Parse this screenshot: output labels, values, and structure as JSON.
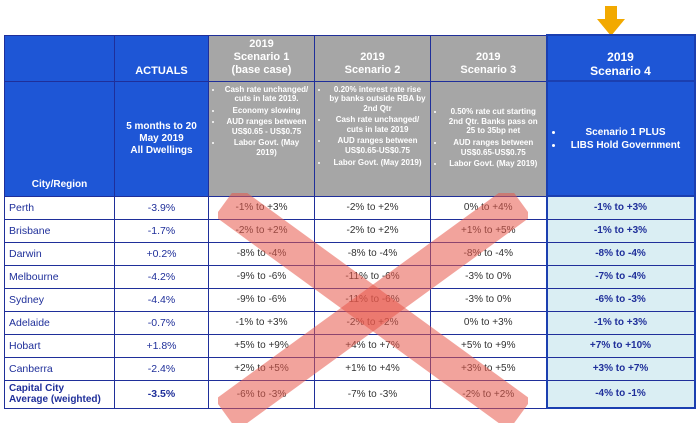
{
  "header": {
    "actuals": "ACTUALS",
    "scenario1": {
      "year": "2019",
      "name": "Scenario 1",
      "sub": "(base case)"
    },
    "scenario2": {
      "year": "2019",
      "name": "Scenario 2"
    },
    "scenario3": {
      "year": "2019",
      "name": "Scenario 3"
    },
    "scenario4": {
      "year": "2019",
      "name": "Scenario 4"
    }
  },
  "subheader": {
    "city_region": "City/Region",
    "actuals_line1": "5 months to 20",
    "actuals_line2": "May 2019",
    "actuals_line3": "All Dwellings",
    "scenario1_bullets": [
      "Cash rate unchanged/ cuts in late 2019.",
      "Economy slowing",
      "AUD ranges between US$0.65 - US$0.75",
      "Labor Govt. (May 2019)"
    ],
    "scenario2_bullets": [
      "0.20% interest rate rise by banks outside RBA by 2nd Qtr",
      "Cash rate unchanged/ cuts in late 2019",
      "AUD ranges between US$0.65-US$0.75",
      "Labor Govt. (May 2019)"
    ],
    "scenario3_bullets": [
      "0.50% rate cut starting 2nd Qtr. Banks pass on 25 to 35bp net",
      "AUD ranges between US$0.65-US$0.75",
      "Labor Govt. (May 2019)"
    ],
    "scenario4_bullets": [
      "Scenario 1 PLUS",
      "LIBS Hold Government"
    ]
  },
  "rows": [
    {
      "city": "Perth",
      "actual": "-3.9%",
      "s1": "-1% to +3%",
      "s2": "-2% to +2%",
      "s3": "0% to +4%",
      "s4": "-1% to +3%"
    },
    {
      "city": "Brisbane",
      "actual": "-1.7%",
      "s1": "-2% to +2%",
      "s2": "-2% to +2%",
      "s3": "+1% to +5%",
      "s4": "-1% to +3%"
    },
    {
      "city": "Darwin",
      "actual": "+0.2%",
      "s1": "-8% to -4%",
      "s2": "-8% to -4%",
      "s3": "-8% to -4%",
      "s4": "-8% to -4%"
    },
    {
      "city": "Melbourne",
      "actual": "-4.2%",
      "s1": "-9% to -6%",
      "s2": "-11% to -6%",
      "s3": "-3% to 0%",
      "s4": "-7% to -4%"
    },
    {
      "city": "Sydney",
      "actual": "-4.4%",
      "s1": "-9% to -6%",
      "s2": "-11% to -6%",
      "s3": "-3% to 0%",
      "s4": "-6% to -3%"
    },
    {
      "city": "Adelaide",
      "actual": "-0.7%",
      "s1": "-1% to +3%",
      "s2": "-2% to +2%",
      "s3": "0% to +3%",
      "s4": "-1% to +3%"
    },
    {
      "city": "Hobart",
      "actual": "+1.8%",
      "s1": "+5% to +9%",
      "s2": "+4% to +7%",
      "s3": "+5% to +9%",
      "s4": "+7% to +10%"
    },
    {
      "city": "Canberra",
      "actual": "-2.4%",
      "s1": "+2% to +5%",
      "s2": "+1% to +4%",
      "s3": "+3% to +5%",
      "s4": "+3% to +7%"
    }
  ],
  "total": {
    "city_line1": "Capital City",
    "city_line2": "Average (weighted)",
    "actual": "-3.5%",
    "s1": "-6% to -3%",
    "s2": "-7% to -3%",
    "s3": "-2% to +2%",
    "s4": "-4% to -1%"
  },
  "colors": {
    "header_blue": "#1e56d6",
    "header_gray": "#a6a6a6",
    "scenario4_fill": "#daeef3",
    "arrow": "#f2a900",
    "cross": "#e8584a"
  },
  "icons": {
    "pointer": "down-arrow-icon",
    "overlay": "cross-out-icon"
  }
}
